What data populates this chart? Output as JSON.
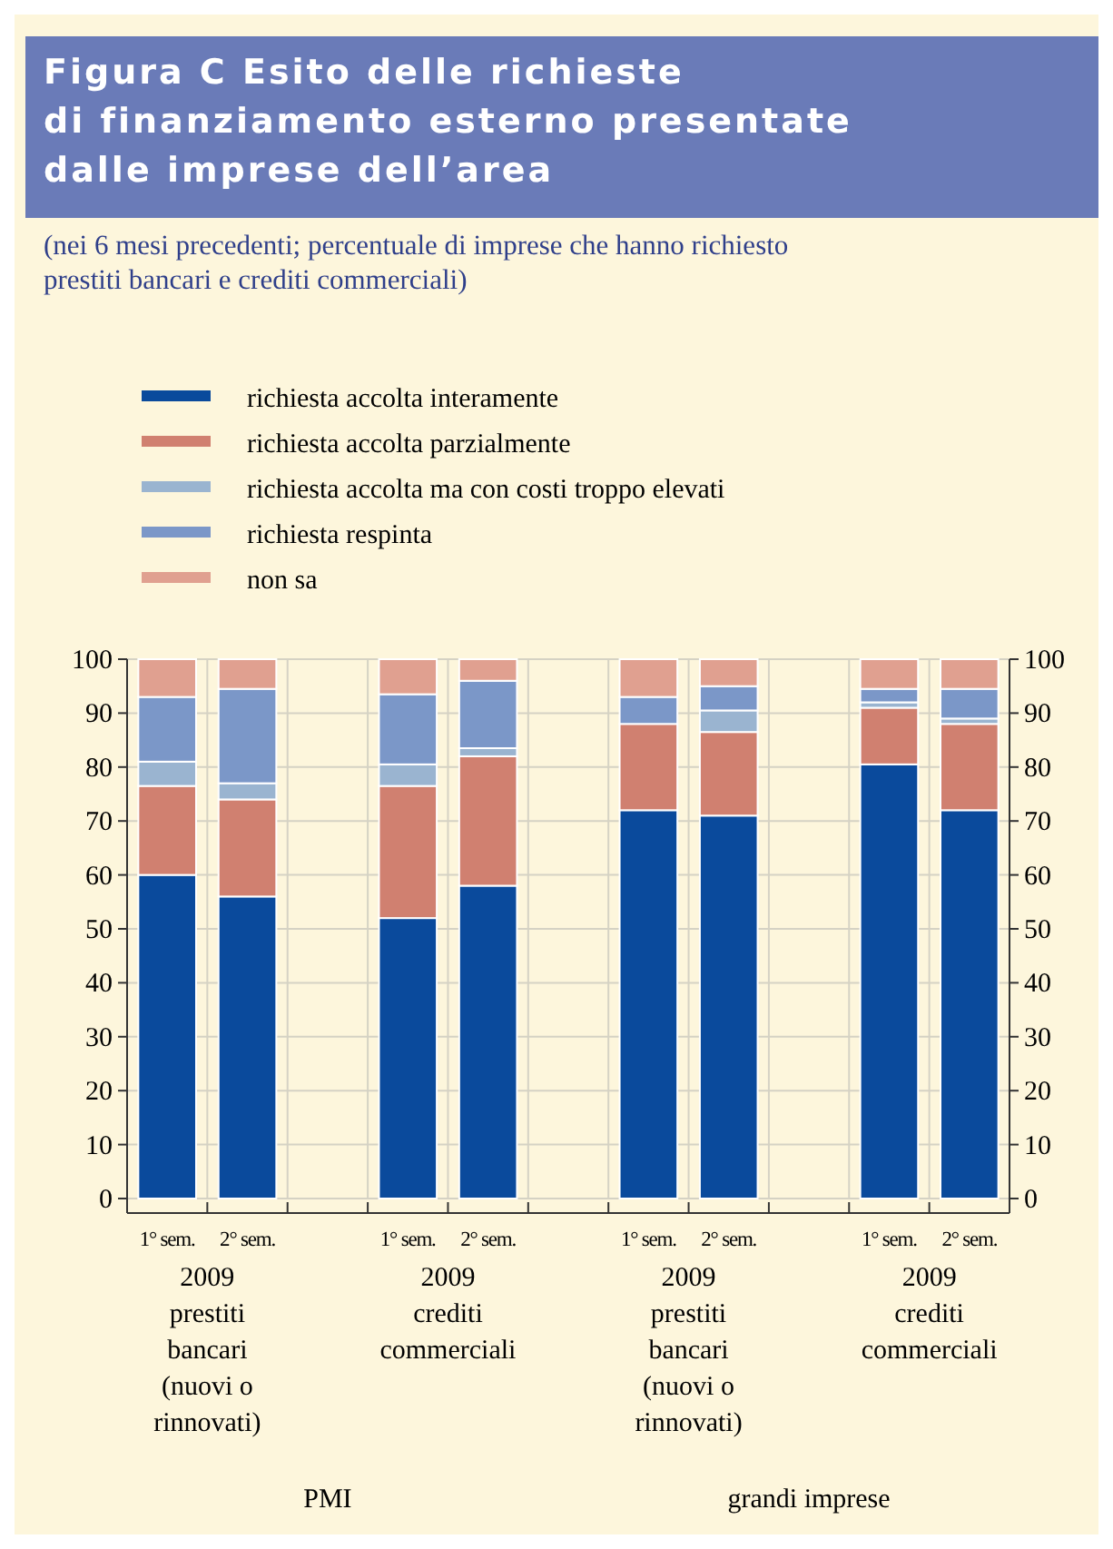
{
  "chart_data": {
    "type": "bar",
    "title": "Figura C Esito delle richieste\ndi finanziamento esterno presentate\ndalle imprese dell’area",
    "subtitle": "(nei 6 mesi precedenti; percentuale di imprese che hanno richiesto\nprestiti bancari e crediti commerciali)",
    "categories": [
      "1° sem.",
      "2° sem.",
      null,
      "1° sem.",
      "2° sem.",
      null,
      "1° sem.",
      "2° sem.",
      null,
      "1° sem.",
      "2° sem."
    ],
    "stacked": true,
    "series": [
      {
        "name": "richiesta accolta interamente",
        "color": "#0a4a9c",
        "values": [
          60,
          56,
          null,
          52,
          58,
          null,
          72,
          71,
          null,
          80.5,
          72
        ]
      },
      {
        "name": "richiesta accolta parzialmente",
        "color": "#d08070",
        "values": [
          16.5,
          18,
          null,
          24.5,
          24,
          null,
          16,
          15.5,
          null,
          10.5,
          16
        ]
      },
      {
        "name": "richiesta accolta ma con costi troppo elevati",
        "color": "#9ab4d0",
        "values": [
          4.5,
          3,
          null,
          4,
          1.5,
          null,
          0,
          4,
          null,
          1,
          1
        ]
      },
      {
        "name": "richiesta respinta",
        "color": "#7b97c8",
        "values": [
          12,
          17.5,
          null,
          13,
          12.5,
          null,
          5,
          4.5,
          null,
          2.5,
          5.5
        ]
      },
      {
        "name": "non sa",
        "color": "#e0a090",
        "values": [
          7,
          5.5,
          null,
          6.5,
          4,
          null,
          7,
          5,
          null,
          5.5,
          5.5
        ]
      }
    ],
    "ylim": [
      0,
      100
    ],
    "yticks": [
      0,
      10,
      20,
      30,
      40,
      50,
      60,
      70,
      80,
      90,
      100
    ],
    "y2lim": [
      0,
      100
    ],
    "y2ticks": [
      0,
      10,
      20,
      30,
      40,
      50,
      60,
      70,
      80,
      90,
      100
    ],
    "grid": true,
    "legend": "top left",
    "annotations": [
      "2009\nprestiti\nbancari\n(nuovi o\nrinnovati)",
      "2009\ncrediti\ncommerciali",
      "2009\nprestiti\nbancari\n(nuovi o\nrinnovati)",
      "2009\ncrediti\ncommerciali",
      "PMI",
      "grandi imprese"
    ]
  }
}
